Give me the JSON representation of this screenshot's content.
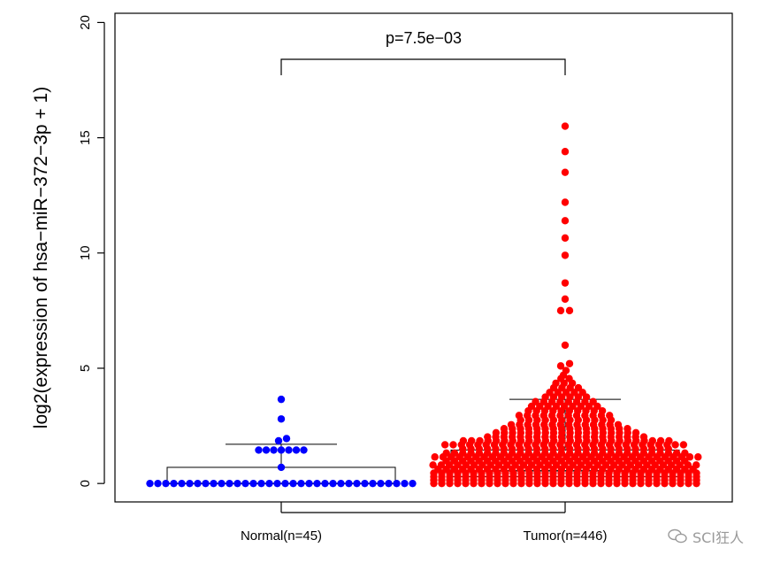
{
  "chart_data": {
    "type": "beeswarm",
    "ylabel": "log2(expression of hsa−miR−372−3p + 1)",
    "ylim": [
      -0.8,
      20.4
    ],
    "yticks": [
      0,
      5,
      10,
      15,
      20
    ],
    "categories": [
      "Normal(n=45)",
      "Tumor(n=446)"
    ],
    "annotation": "p=7.5e−03",
    "colors": {
      "Normal(n=45)": "#0000ff",
      "Tumor(n=446)": "#ff0000"
    },
    "groups": [
      {
        "name": "Normal(n=45)",
        "n": 45,
        "box": {
          "lower": 0.0,
          "median": 0.0,
          "upper": 0.7
        },
        "whisker_hi": 1.7,
        "highlighted_values": [
          3.65,
          2.8,
          1.95,
          1.85,
          1.5,
          1.45,
          1.4,
          1.35,
          1.3,
          0.7
        ]
      },
      {
        "name": "Tumor(n=446)",
        "n": 446,
        "box": {
          "lower": 0.3,
          "median": 0.55,
          "upper": 1.45
        },
        "whisker_hi": 3.65,
        "highlighted_values": [
          15.5,
          14.4,
          13.5,
          12.2,
          11.4,
          10.65,
          9.9,
          8.7,
          8.0,
          7.5,
          7.5,
          6.0,
          5.2,
          5.1,
          4.9,
          4.7
        ]
      }
    ]
  },
  "watermark": {
    "text": "SCI狂人",
    "icon": "wechat-icon"
  }
}
